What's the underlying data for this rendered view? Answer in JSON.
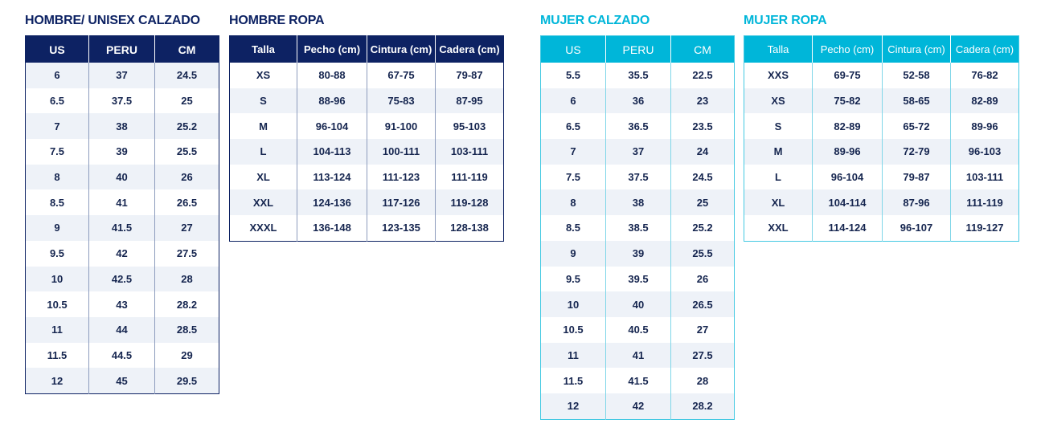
{
  "colors": {
    "navy": "#0d2263",
    "cyan": "#00b6d9",
    "row_shade": "#eef2f8"
  },
  "tables": [
    {
      "id": "hombre-calzado",
      "title": "HOMBRE/ UNISEX CALZADO",
      "headers": [
        "US",
        "PERU",
        "CM"
      ],
      "rows": [
        [
          "6",
          "37",
          "24.5"
        ],
        [
          "6.5",
          "37.5",
          "25"
        ],
        [
          "7",
          "38",
          "25.2"
        ],
        [
          "7.5",
          "39",
          "25.5"
        ],
        [
          "8",
          "40",
          "26"
        ],
        [
          "8.5",
          "41",
          "26.5"
        ],
        [
          "9",
          "41.5",
          "27"
        ],
        [
          "9.5",
          "42",
          "27.5"
        ],
        [
          "10",
          "42.5",
          "28"
        ],
        [
          "10.5",
          "43",
          "28.2"
        ],
        [
          "11",
          "44",
          "28.5"
        ],
        [
          "11.5",
          "44.5",
          "29"
        ],
        [
          "12",
          "45",
          "29.5"
        ]
      ]
    },
    {
      "id": "hombre-ropa",
      "title": "HOMBRE ROPA",
      "headers": [
        "Talla",
        "Pecho (cm)",
        "Cintura (cm)",
        "Cadera (cm)"
      ],
      "rows": [
        [
          "XS",
          "80-88",
          "67-75",
          "79-87"
        ],
        [
          "S",
          "88-96",
          "75-83",
          "87-95"
        ],
        [
          "M",
          "96-104",
          "91-100",
          "95-103"
        ],
        [
          "L",
          "104-113",
          "100-111",
          "103-111"
        ],
        [
          "XL",
          "113-124",
          "111-123",
          "111-119"
        ],
        [
          "XXL",
          "124-136",
          "117-126",
          "119-128"
        ],
        [
          "XXXL",
          "136-148",
          "123-135",
          "128-138"
        ]
      ]
    },
    {
      "id": "mujer-calzado",
      "title": "MUJER CALZADO",
      "headers": [
        "US",
        "PERU",
        "CM"
      ],
      "rows": [
        [
          "5.5",
          "35.5",
          "22.5"
        ],
        [
          "6",
          "36",
          "23"
        ],
        [
          "6.5",
          "36.5",
          "23.5"
        ],
        [
          "7",
          "37",
          "24"
        ],
        [
          "7.5",
          "37.5",
          "24.5"
        ],
        [
          "8",
          "38",
          "25"
        ],
        [
          "8.5",
          "38.5",
          "25.2"
        ],
        [
          "9",
          "39",
          "25.5"
        ],
        [
          "9.5",
          "39.5",
          "26"
        ],
        [
          "10",
          "40",
          "26.5"
        ],
        [
          "10.5",
          "40.5",
          "27"
        ],
        [
          "11",
          "41",
          "27.5"
        ],
        [
          "11.5",
          "41.5",
          "28"
        ],
        [
          "12",
          "42",
          "28.2"
        ]
      ]
    },
    {
      "id": "mujer-ropa",
      "title": "MUJER ROPA",
      "headers": [
        "Talla",
        "Pecho (cm)",
        "Cintura (cm)",
        "Cadera (cm)"
      ],
      "rows": [
        [
          "XXS",
          "69-75",
          "52-58",
          "76-82"
        ],
        [
          "XS",
          "75-82",
          "58-65",
          "82-89"
        ],
        [
          "S",
          "82-89",
          "65-72",
          "89-96"
        ],
        [
          "M",
          "89-96",
          "72-79",
          "96-103"
        ],
        [
          "L",
          "96-104",
          "79-87",
          "103-111"
        ],
        [
          "XL",
          "104-114",
          "87-96",
          "111-119"
        ],
        [
          "XXL",
          "114-124",
          "96-107",
          "119-127"
        ]
      ]
    }
  ]
}
